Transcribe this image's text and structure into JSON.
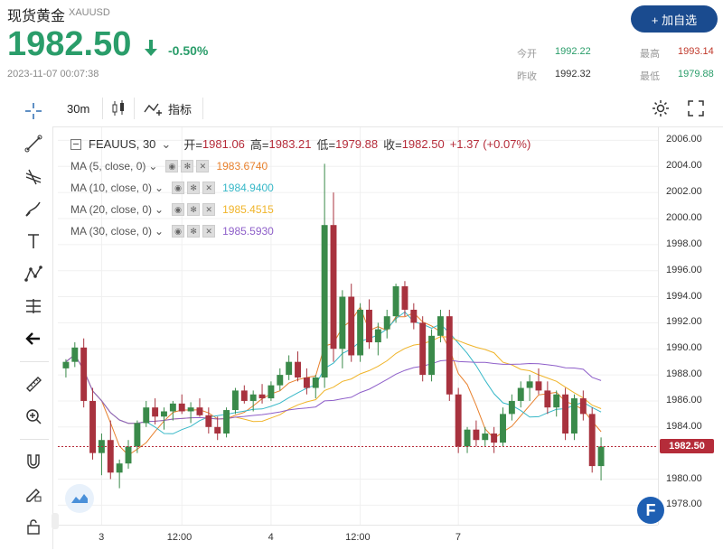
{
  "header": {
    "name": "现货黄金",
    "code": "XAUUSD",
    "add_label": "+ 加自选",
    "price": "1982.50",
    "change": "-0.50%",
    "timestamp": "2023-11-07 00:07:38",
    "stats": {
      "open_label": "今开",
      "open": "1992.22",
      "high_label": "最高",
      "high": "1993.14",
      "prev_label": "昨收",
      "prev": "1992.32",
      "low_label": "最低",
      "low": "1979.88"
    },
    "colors": {
      "up": "#2a9d6a",
      "down": "#c0392b"
    }
  },
  "toolbar": {
    "interval": "30m",
    "indicator_label": "指标",
    "icons": [
      "crosshair-icon",
      "line-icon",
      "fib-icon",
      "brush-icon",
      "text-icon",
      "pattern-icon",
      "measure-icon",
      "arrow-left-icon",
      "ruler-icon",
      "zoom-in-icon",
      "magnet-icon",
      "lock-pencil-icon",
      "lock-icon"
    ]
  },
  "legend": {
    "symbol": "FEAUUS, 30",
    "open_label": "开=",
    "open": "1981.06",
    "high_label": "高=",
    "high": "1983.21",
    "low_label": "低=",
    "low": "1979.88",
    "close_label": "收=",
    "close": "1982.50",
    "change": "+1.37 (+0.07%)",
    "ma": [
      {
        "label": "MA (5, close, 0)",
        "value": "1983.6740",
        "color": "#e8812d"
      },
      {
        "label": "MA (10, close, 0)",
        "value": "1984.9400",
        "color": "#37b8c8"
      },
      {
        "label": "MA (20, close, 0)",
        "value": "1985.4515",
        "color": "#f0b429"
      },
      {
        "label": "MA (30, close, 0)",
        "value": "1985.5930",
        "color": "#8e5fc9"
      }
    ]
  },
  "chart_data": {
    "type": "candlestick",
    "y_ticks": [
      "2006.00",
      "2004.00",
      "2002.00",
      "2000.00",
      "1998.00",
      "1996.00",
      "1994.00",
      "1992.00",
      "1990.00",
      "1988.00",
      "1986.00",
      "1984.00",
      "1982.50",
      "1980.00",
      "1978.00"
    ],
    "x_ticks": [
      "3",
      "12:00",
      "4",
      "12:00",
      "7"
    ],
    "ylim": [
      1976.5,
      2007
    ],
    "last_price": "1982.50",
    "candles": [
      [
        1988.5,
        1989.2,
        1987.8,
        1989.0
      ],
      [
        1989.0,
        1990.5,
        1988.6,
        1990.1
      ],
      [
        1990.1,
        1990.8,
        1985.5,
        1986.0
      ],
      [
        1986.0,
        1987.0,
        1981.5,
        1982.0
      ],
      [
        1982.0,
        1983.5,
        1980.3,
        1983.0
      ],
      [
        1983.0,
        1984.5,
        1980.0,
        1980.5
      ],
      [
        1980.5,
        1981.5,
        1979.3,
        1981.2
      ],
      [
        1981.2,
        1983.0,
        1980.8,
        1982.5
      ],
      [
        1982.5,
        1984.5,
        1982.0,
        1984.3
      ],
      [
        1984.3,
        1986.0,
        1984.0,
        1985.5
      ],
      [
        1985.5,
        1986.2,
        1984.2,
        1984.8
      ],
      [
        1984.8,
        1985.5,
        1983.8,
        1985.2
      ],
      [
        1985.2,
        1986.0,
        1984.5,
        1985.8
      ],
      [
        1985.8,
        1986.5,
        1985.0,
        1985.2
      ],
      [
        1985.2,
        1985.9,
        1984.3,
        1985.5
      ],
      [
        1985.5,
        1986.2,
        1984.8,
        1984.9
      ],
      [
        1984.9,
        1985.5,
        1983.5,
        1984.0
      ],
      [
        1984.0,
        1984.8,
        1983.0,
        1983.5
      ],
      [
        1983.5,
        1985.5,
        1983.2,
        1985.3
      ],
      [
        1985.3,
        1987.0,
        1985.0,
        1986.8
      ],
      [
        1986.8,
        1987.2,
        1985.8,
        1986.0
      ],
      [
        1986.0,
        1986.8,
        1985.2,
        1986.5
      ],
      [
        1986.5,
        1987.3,
        1985.8,
        1986.2
      ],
      [
        1986.2,
        1987.5,
        1986.0,
        1987.2
      ],
      [
        1987.2,
        1988.5,
        1986.8,
        1988.0
      ],
      [
        1988.0,
        1989.5,
        1987.6,
        1989.0
      ],
      [
        1989.0,
        1989.8,
        1987.5,
        1987.8
      ],
      [
        1987.8,
        1988.5,
        1986.5,
        1987.0
      ],
      [
        1987.0,
        1988.0,
        1986.2,
        1987.8
      ],
      [
        1987.8,
        2004.2,
        1987.0,
        1999.5
      ],
      [
        1999.5,
        2002.0,
        1989.0,
        1990.0
      ],
      [
        1990.0,
        1994.5,
        1988.5,
        1994.0
      ],
      [
        1994.0,
        1995.0,
        1989.0,
        1989.5
      ],
      [
        1989.5,
        1993.5,
        1989.0,
        1993.0
      ],
      [
        1993.0,
        1993.8,
        1990.0,
        1990.5
      ],
      [
        1990.5,
        1992.0,
        1989.5,
        1991.5
      ],
      [
        1991.5,
        1993.0,
        1990.8,
        1992.5
      ],
      [
        1992.5,
        1995.0,
        1992.0,
        1994.8
      ],
      [
        1994.8,
        1995.2,
        1992.5,
        1993.0
      ],
      [
        1993.0,
        1993.5,
        1991.5,
        1992.0
      ],
      [
        1992.0,
        1992.5,
        1987.5,
        1988.0
      ],
      [
        1988.0,
        1991.5,
        1987.5,
        1991.0
      ],
      [
        1991.0,
        1993.0,
        1990.5,
        1992.5
      ],
      [
        1992.5,
        1993.0,
        1986.0,
        1986.5
      ],
      [
        1986.5,
        1987.0,
        1982.0,
        1982.5
      ],
      [
        1982.5,
        1984.0,
        1982.0,
        1983.8
      ],
      [
        1983.8,
        1984.5,
        1982.5,
        1983.0
      ],
      [
        1983.0,
        1984.0,
        1982.5,
        1983.5
      ],
      [
        1983.5,
        1984.0,
        1982.0,
        1982.8
      ],
      [
        1982.8,
        1985.5,
        1982.5,
        1985.0
      ],
      [
        1985.0,
        1986.5,
        1984.5,
        1986.0
      ],
      [
        1986.0,
        1987.5,
        1985.5,
        1987.0
      ],
      [
        1987.0,
        1988.0,
        1986.0,
        1987.5
      ],
      [
        1987.5,
        1988.5,
        1986.5,
        1986.8
      ],
      [
        1986.8,
        1987.5,
        1985.0,
        1985.5
      ],
      [
        1985.5,
        1986.8,
        1984.8,
        1986.5
      ],
      [
        1986.5,
        1987.0,
        1983.0,
        1983.5
      ],
      [
        1983.5,
        1986.5,
        1983.0,
        1986.2
      ],
      [
        1986.2,
        1986.8,
        1984.5,
        1985.0
      ],
      [
        1985.0,
        1985.5,
        1980.5,
        1981.0
      ],
      [
        1981.0,
        1983.2,
        1979.9,
        1982.5
      ]
    ]
  }
}
